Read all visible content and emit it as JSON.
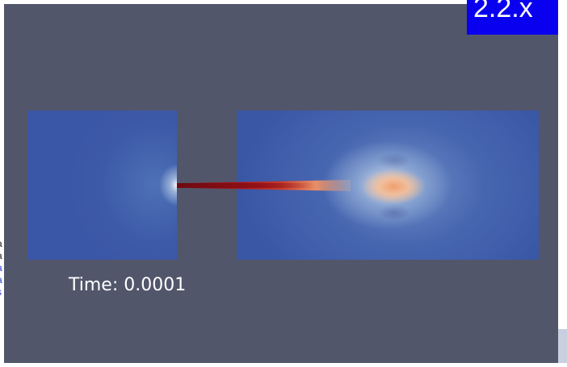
{
  "version_badge": "2.2.x",
  "viewport": {
    "background_color": "#52566b",
    "time_label": "Time: 0.0001"
  },
  "sidebar_fragments": [
    "a",
    "a",
    "a",
    "a",
    "s"
  ],
  "colors": {
    "badge": "#0a00f0",
    "field_low": "#3a56a6",
    "field_high": "#8a0e14"
  }
}
